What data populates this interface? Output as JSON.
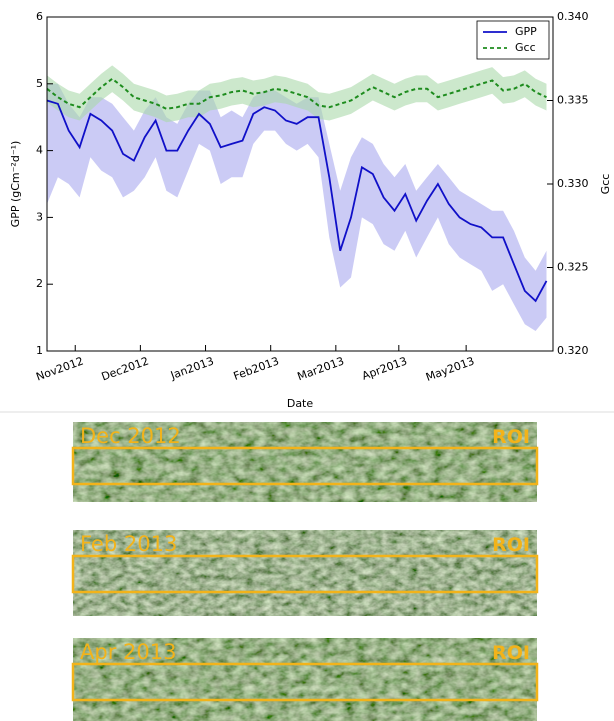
{
  "chart_data": {
    "type": "line",
    "xlabel": "Date",
    "ylabel": "GPP (gCm⁻²d⁻¹)",
    "y2label": "Gcc",
    "x": [
      0,
      5,
      10,
      15,
      20,
      25,
      30,
      35,
      40,
      45,
      50,
      55,
      60,
      65,
      70,
      75,
      80,
      85,
      90,
      95,
      100,
      105,
      110,
      115,
      120,
      125,
      130,
      135,
      140,
      145,
      150,
      155,
      160,
      165,
      170,
      175,
      180,
      185,
      190,
      195,
      200,
      205,
      210,
      215,
      220,
      225,
      230
    ],
    "xlim": [
      0,
      233
    ],
    "xticks": [
      {
        "value": 13,
        "label": "Nov2012"
      },
      {
        "value": 43,
        "label": "Dec2012"
      },
      {
        "value": 73,
        "label": "Jan2013"
      },
      {
        "value": 103,
        "label": "Feb2013"
      },
      {
        "value": 133,
        "label": "Mar2013"
      },
      {
        "value": 162,
        "label": "Apr2013"
      },
      {
        "value": 193,
        "label": "May2013"
      }
    ],
    "ylim": [
      1,
      6
    ],
    "yticks": [
      1,
      2,
      3,
      4,
      5,
      6
    ],
    "y2lim": [
      0.32,
      0.34
    ],
    "y2ticks": [
      {
        "value": 0.32,
        "label": "0.320"
      },
      {
        "value": 0.325,
        "label": "0.325"
      },
      {
        "value": 0.33,
        "label": "0.330"
      },
      {
        "value": 0.335,
        "label": "0.335"
      },
      {
        "value": 0.34,
        "label": "0.340"
      }
    ],
    "legend": "upper right",
    "series": [
      {
        "name": "GPP",
        "color": "#1010c8",
        "band_color": "#a9a9ee",
        "dash": "solid",
        "values": [
          4.75,
          4.7,
          4.3,
          4.05,
          4.55,
          4.45,
          4.3,
          3.95,
          3.85,
          4.2,
          4.45,
          4.0,
          4.0,
          4.3,
          4.55,
          4.4,
          4.05,
          4.1,
          4.15,
          4.55,
          4.65,
          4.6,
          4.45,
          4.4,
          4.5,
          4.5,
          3.6,
          2.5,
          3.0,
          3.75,
          3.65,
          3.3,
          3.1,
          3.35,
          2.95,
          3.25,
          3.5,
          3.2,
          3.0,
          2.9,
          2.85,
          2.7,
          2.7,
          2.3,
          1.9,
          1.75,
          2.05
        ],
        "lower": [
          3.2,
          3.6,
          3.5,
          3.3,
          3.9,
          3.7,
          3.6,
          3.3,
          3.4,
          3.6,
          3.9,
          3.4,
          3.3,
          3.7,
          4.1,
          4.0,
          3.5,
          3.6,
          3.6,
          4.1,
          4.3,
          4.3,
          4.1,
          4.0,
          4.1,
          3.9,
          2.7,
          1.95,
          2.1,
          3.0,
          2.9,
          2.6,
          2.5,
          2.8,
          2.4,
          2.7,
          3.0,
          2.6,
          2.4,
          2.3,
          2.2,
          1.9,
          2.0,
          1.7,
          1.4,
          1.3,
          1.5
        ],
        "upper": [
          5.0,
          5.0,
          4.7,
          4.5,
          4.8,
          4.8,
          4.7,
          4.5,
          4.3,
          4.6,
          4.8,
          4.5,
          4.4,
          4.7,
          4.9,
          4.9,
          4.5,
          4.6,
          4.5,
          4.8,
          4.9,
          4.9,
          4.8,
          4.7,
          4.8,
          4.8,
          4.1,
          3.4,
          3.9,
          4.2,
          4.1,
          3.8,
          3.6,
          3.8,
          3.4,
          3.6,
          3.8,
          3.6,
          3.4,
          3.3,
          3.2,
          3.1,
          3.1,
          2.8,
          2.4,
          2.2,
          2.5
        ]
      },
      {
        "name": "Gcc",
        "axis": "y2",
        "color": "#1e8c1e",
        "band_color": "#aad8aa",
        "dash": "dashed",
        "values": [
          0.3357,
          0.3352,
          0.3348,
          0.3346,
          0.3352,
          0.3358,
          0.3363,
          0.3358,
          0.3352,
          0.335,
          0.3348,
          0.3345,
          0.3346,
          0.3348,
          0.3348,
          0.3352,
          0.3353,
          0.3355,
          0.3356,
          0.3354,
          0.3355,
          0.3357,
          0.3356,
          0.3354,
          0.3352,
          0.3347,
          0.3346,
          0.3348,
          0.335,
          0.3354,
          0.3358,
          0.3355,
          0.3352,
          0.3355,
          0.3357,
          0.3357,
          0.3352,
          0.3354,
          0.3356,
          0.3358,
          0.336,
          0.3362,
          0.3356,
          0.3357,
          0.336,
          0.3355,
          0.3352
        ],
        "lower": [
          0.3349,
          0.3344,
          0.334,
          0.3338,
          0.3344,
          0.335,
          0.3355,
          0.335,
          0.3344,
          0.3342,
          0.334,
          0.3337,
          0.3338,
          0.334,
          0.334,
          0.3344,
          0.3345,
          0.3347,
          0.3348,
          0.3346,
          0.3347,
          0.3349,
          0.3348,
          0.3346,
          0.3344,
          0.3339,
          0.3338,
          0.334,
          0.3342,
          0.3346,
          0.335,
          0.3347,
          0.3344,
          0.3347,
          0.3349,
          0.3349,
          0.3344,
          0.3346,
          0.3348,
          0.335,
          0.3352,
          0.3354,
          0.3348,
          0.3349,
          0.3352,
          0.3347,
          0.3344
        ],
        "upper": [
          0.3365,
          0.336,
          0.3356,
          0.3354,
          0.336,
          0.3366,
          0.3371,
          0.3366,
          0.336,
          0.3358,
          0.3356,
          0.3353,
          0.3354,
          0.3356,
          0.3356,
          0.336,
          0.3361,
          0.3363,
          0.3364,
          0.3362,
          0.3363,
          0.3365,
          0.3364,
          0.3362,
          0.336,
          0.3355,
          0.3354,
          0.3356,
          0.3358,
          0.3362,
          0.3366,
          0.3363,
          0.336,
          0.3363,
          0.3365,
          0.3365,
          0.336,
          0.3362,
          0.3364,
          0.3366,
          0.3368,
          0.337,
          0.3364,
          0.3365,
          0.3368,
          0.3363,
          0.336
        ]
      }
    ]
  },
  "panels": [
    {
      "label": "Dec 2012",
      "roi": "ROI"
    },
    {
      "label": "Feb 2013",
      "roi": "ROI"
    },
    {
      "label": "Apr 2013",
      "roi": "ROI"
    }
  ]
}
